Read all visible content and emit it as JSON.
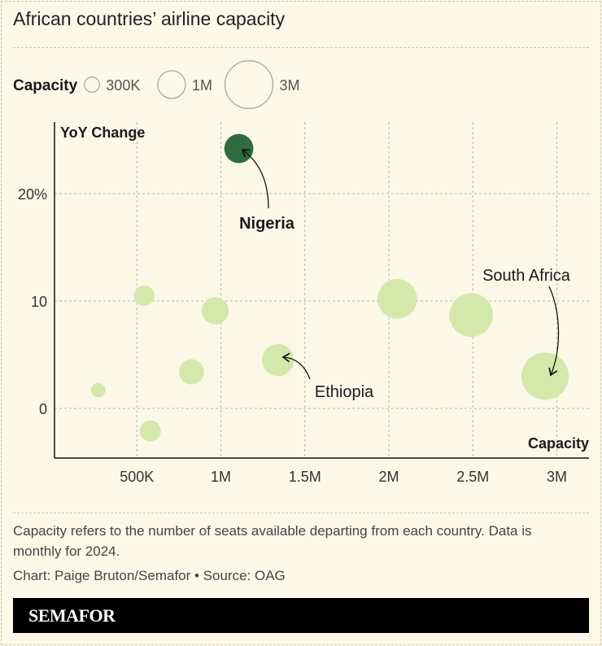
{
  "title": "African countries’ airline capacity",
  "chart_data": {
    "type": "scatter",
    "title": "African countries’ airline capacity",
    "xlabel": "Capacity",
    "ylabel": "YoY Change",
    "xlim": [
      0,
      3200000
    ],
    "ylim": [
      -5,
      25
    ],
    "x_ticks": [
      {
        "v": 500000,
        "label": "500K"
      },
      {
        "v": 1000000,
        "label": "1M"
      },
      {
        "v": 1500000,
        "label": "1.5M"
      },
      {
        "v": 2000000,
        "label": "2M"
      },
      {
        "v": 2500000,
        "label": "2.5M"
      },
      {
        "v": 3000000,
        "label": "3M"
      }
    ],
    "y_ticks": [
      {
        "v": 0,
        "label": "0"
      },
      {
        "v": 10,
        "label": "10"
      },
      {
        "v": 20,
        "label": "20%"
      }
    ],
    "grid": true,
    "size_legend": {
      "label": "Capacity",
      "items": [
        {
          "v": 300000,
          "label": "300K"
        },
        {
          "v": 1000000,
          "label": "1M"
        },
        {
          "v": 3000000,
          "label": "3M"
        }
      ]
    },
    "colors": {
      "default": "#d5e8ab",
      "highlight": "#2f6b3c"
    },
    "points": [
      {
        "x": 1107000,
        "y": 24.2,
        "label": "Nigeria",
        "highlight": true
      },
      {
        "x": 544000,
        "y": 10.5
      },
      {
        "x": 966000,
        "y": 9.1
      },
      {
        "x": 2050000,
        "y": 10.2
      },
      {
        "x": 2490000,
        "y": 8.7
      },
      {
        "x": 1340000,
        "y": 4.5,
        "label": "Ethiopia"
      },
      {
        "x": 825000,
        "y": 3.4
      },
      {
        "x": 270000,
        "y": 1.7
      },
      {
        "x": 580000,
        "y": -2.1
      },
      {
        "x": 2930000,
        "y": 3.0,
        "label": "South Africa"
      }
    ]
  },
  "note": "Capacity refers to the number of seats available departing from each country. Data is monthly for 2024.",
  "credit": "Chart: Paige Bruton/Semafor • Source: OAG",
  "logo": "SEMAFOR"
}
